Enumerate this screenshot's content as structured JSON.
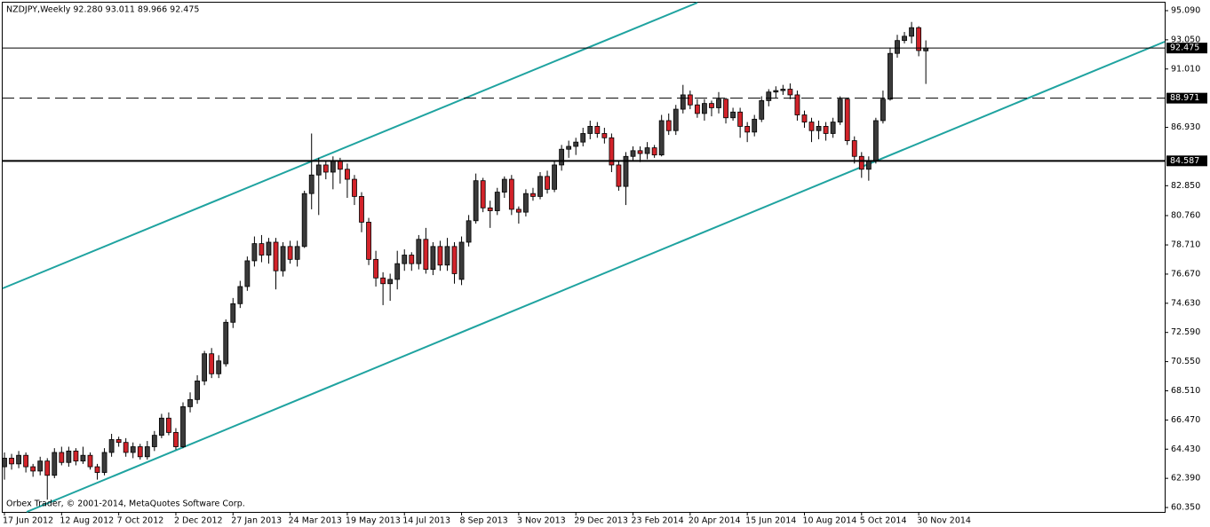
{
  "chart_data": {
    "type": "candlestick",
    "title": "NZDJPY,Weekly  92.280 93.011 89.966 92.475",
    "copyright": "Orbex Trader, © 2001-2014, MetaQuotes Software Corp.",
    "categories": [
      "17 Jun 2012",
      null,
      null,
      null,
      null,
      null,
      null,
      null,
      "12 Aug 2012",
      null,
      null,
      null,
      null,
      null,
      null,
      null,
      "7 Oct 2012",
      null,
      null,
      null,
      null,
      null,
      null,
      null,
      "2 Dec 2012",
      null,
      null,
      null,
      null,
      null,
      null,
      null,
      "27 Jan 2013",
      null,
      null,
      null,
      null,
      null,
      null,
      null,
      "24 Mar 2013",
      null,
      null,
      null,
      null,
      null,
      null,
      null,
      "19 May 2013",
      null,
      null,
      null,
      null,
      null,
      null,
      null,
      "14 Jul 2013",
      null,
      null,
      null,
      null,
      null,
      null,
      null,
      "8 Sep 2013",
      null,
      null,
      null,
      null,
      null,
      null,
      null,
      "3 Nov 2013",
      null,
      null,
      null,
      null,
      null,
      null,
      null,
      "29 Dec 2013",
      null,
      null,
      null,
      null,
      null,
      null,
      null,
      "23 Feb 2014",
      null,
      null,
      null,
      null,
      null,
      null,
      null,
      "20 Apr 2014",
      null,
      null,
      null,
      null,
      null,
      null,
      null,
      "15 Jun 2014",
      null,
      null,
      null,
      null,
      null,
      null,
      null,
      "10 Aug 2014",
      null,
      null,
      null,
      null,
      null,
      null,
      null,
      "5 Oct 2014",
      null,
      null,
      null,
      null,
      null,
      null,
      null,
      "30 Nov 2014",
      null
    ],
    "open": [
      63.2,
      63.8,
      63.4,
      64.0,
      63.2,
      62.9,
      63.6,
      62.6,
      64.2,
      63.5,
      64.3,
      63.6,
      64.0,
      63.2,
      62.8,
      64.2,
      65.1,
      64.9,
      64.2,
      64.6,
      63.9,
      64.6,
      65.4,
      66.6,
      65.6,
      64.6,
      67.4,
      67.9,
      69.2,
      71.1,
      69.7,
      70.4,
      73.3,
      74.6,
      75.8,
      77.6,
      78.8,
      78.0,
      78.9,
      76.9,
      78.6,
      77.7,
      78.6,
      82.3,
      83.6,
      84.3,
      83.8,
      84.6,
      84.0,
      83.3,
      82.1,
      80.3,
      77.7,
      76.4,
      76.0,
      76.3,
      77.4,
      78.0,
      77.4,
      79.1,
      77.0,
      78.6,
      77.3,
      78.6,
      76.3,
      78.9,
      80.4,
      83.2,
      81.3,
      81.1,
      82.4,
      83.3,
      81.2,
      81.0,
      82.3,
      82.1,
      83.5,
      82.6,
      84.3,
      85.4,
      85.6,
      85.9,
      86.5,
      87.0,
      86.5,
      86.2,
      84.3,
      82.8,
      84.9,
      85.3,
      85.1,
      85.5,
      85.0,
      87.4,
      86.7,
      88.2,
      89.2,
      88.5,
      87.9,
      88.6,
      88.3,
      88.9,
      87.6,
      88.0,
      87.0,
      86.6,
      87.5,
      88.8,
      89.4,
      89.5,
      89.6,
      89.2,
      87.8,
      87.3,
      86.7,
      87.0,
      86.5,
      87.3,
      88.9,
      86.0,
      84.9,
      84.0,
      84.6,
      87.4,
      88.9,
      92.1,
      93.0,
      93.3,
      93.9,
      92.28
    ],
    "high": [
      64.2,
      64.1,
      64.3,
      64.2,
      63.4,
      63.9,
      63.8,
      64.5,
      64.6,
      64.6,
      64.5,
      64.6,
      64.2,
      63.4,
      64.5,
      65.5,
      65.3,
      65.2,
      64.9,
      64.8,
      65.0,
      65.7,
      66.9,
      67.0,
      65.9,
      67.7,
      68.4,
      69.6,
      71.3,
      71.5,
      71.0,
      73.5,
      75.0,
      76.2,
      77.9,
      79.3,
      79.4,
      79.2,
      79.2,
      78.9,
      79.0,
      79.0,
      82.5,
      86.5,
      84.8,
      84.6,
      84.9,
      84.8,
      84.4,
      83.6,
      82.4,
      80.6,
      78.3,
      76.8,
      76.7,
      78.3,
      78.4,
      78.2,
      79.4,
      79.9,
      78.9,
      79.0,
      79.2,
      78.9,
      79.3,
      80.8,
      83.7,
      83.4,
      81.8,
      82.7,
      83.5,
      83.6,
      81.4,
      82.6,
      82.7,
      83.8,
      83.9,
      84.6,
      85.7,
      86.0,
      86.2,
      86.9,
      87.4,
      87.3,
      86.9,
      86.5,
      84.6,
      85.2,
      85.6,
      85.6,
      85.9,
      85.7,
      87.8,
      87.9,
      88.5,
      89.9,
      89.5,
      88.9,
      88.9,
      88.8,
      89.4,
      89.0,
      88.3,
      88.3,
      87.3,
      87.8,
      89.1,
      89.6,
      89.8,
      89.9,
      90.0,
      89.5,
      88.1,
      87.6,
      87.4,
      87.3,
      87.6,
      89.1,
      89.0,
      86.3,
      85.2,
      84.9,
      87.6,
      89.5,
      92.5,
      93.4,
      93.6,
      94.3,
      94.0,
      93.011
    ],
    "low": [
      62.3,
      63.0,
      63.1,
      62.8,
      62.5,
      62.6,
      60.9,
      62.4,
      63.3,
      63.2,
      63.3,
      63.4,
      63.0,
      62.3,
      62.6,
      63.9,
      64.6,
      63.9,
      63.8,
      63.7,
      63.7,
      64.3,
      65.2,
      65.4,
      64.4,
      64.5,
      67.0,
      67.6,
      68.9,
      69.4,
      69.4,
      70.2,
      72.9,
      74.3,
      75.5,
      77.2,
      77.5,
      77.4,
      75.6,
      76.5,
      77.4,
      77.2,
      78.5,
      81.2,
      80.8,
      83.3,
      82.6,
      83.0,
      82.0,
      81.5,
      79.6,
      77.3,
      75.8,
      74.5,
      74.8,
      75.6,
      76.9,
      76.9,
      77.0,
      76.7,
      76.6,
      76.9,
      76.9,
      76.0,
      75.9,
      78.6,
      80.2,
      81.0,
      79.9,
      80.8,
      82.0,
      80.8,
      80.2,
      80.7,
      81.8,
      81.9,
      82.3,
      82.4,
      83.9,
      84.8,
      85.0,
      85.6,
      86.1,
      86.2,
      85.8,
      83.8,
      82.5,
      81.5,
      84.6,
      84.5,
      84.7,
      84.8,
      84.9,
      86.4,
      86.4,
      87.9,
      88.2,
      87.6,
      87.4,
      87.7,
      87.9,
      87.2,
      87.4,
      86.2,
      85.9,
      86.3,
      87.3,
      88.4,
      89.0,
      89.2,
      88.9,
      87.4,
      86.9,
      85.9,
      86.1,
      86.0,
      86.2,
      87.1,
      85.7,
      84.4,
      83.4,
      83.2,
      84.4,
      87.2,
      88.8,
      91.8,
      92.8,
      92.8,
      91.9,
      89.966
    ],
    "close": [
      63.8,
      63.4,
      64.0,
      63.2,
      62.9,
      63.6,
      62.6,
      64.2,
      63.5,
      64.3,
      63.6,
      64.0,
      63.2,
      62.8,
      64.2,
      65.1,
      64.9,
      64.2,
      64.6,
      63.9,
      64.6,
      65.4,
      66.6,
      65.6,
      64.6,
      67.4,
      67.9,
      69.2,
      71.1,
      69.7,
      70.6,
      73.3,
      74.6,
      75.8,
      77.6,
      78.8,
      78.0,
      78.9,
      76.9,
      78.6,
      77.7,
      78.6,
      82.3,
      83.6,
      84.3,
      83.8,
      84.6,
      84.0,
      83.3,
      82.1,
      80.3,
      77.7,
      76.4,
      76.0,
      76.3,
      77.4,
      78.0,
      77.4,
      79.1,
      77.0,
      78.6,
      77.3,
      78.6,
      76.7,
      78.9,
      80.4,
      83.2,
      81.3,
      81.1,
      82.4,
      83.3,
      81.2,
      81.0,
      82.3,
      82.1,
      83.5,
      82.6,
      84.3,
      85.4,
      85.6,
      85.9,
      86.5,
      87.0,
      86.5,
      86.2,
      84.3,
      82.8,
      84.9,
      85.3,
      85.1,
      85.5,
      85.0,
      87.4,
      86.7,
      88.2,
      89.2,
      88.5,
      87.9,
      88.6,
      88.3,
      88.9,
      87.6,
      88.0,
      87.0,
      86.6,
      87.5,
      88.8,
      89.4,
      89.5,
      89.6,
      89.2,
      87.8,
      87.3,
      86.7,
      87.0,
      86.5,
      87.3,
      88.9,
      86.0,
      84.9,
      84.0,
      84.6,
      87.4,
      88.9,
      92.1,
      93.0,
      93.3,
      93.9,
      92.3,
      92.475
    ],
    "up_color": "#3a3a3a",
    "down_color": "#d2232a",
    "channel_color": "#1fa3a0",
    "ylim": [
      59.98,
      95.71
    ],
    "yticks": [
      {
        "value": 95.09,
        "label": "95.090"
      },
      {
        "value": 93.05,
        "label": "93.050"
      },
      {
        "value": 91.01,
        "label": "91.010"
      },
      {
        "value": 86.93,
        "label": "86.930"
      },
      {
        "value": 82.85,
        "label": "82.850"
      },
      {
        "value": 80.76,
        "label": "80.760"
      },
      {
        "value": 78.71,
        "label": "78.710"
      },
      {
        "value": 76.67,
        "label": "76.670"
      },
      {
        "value": 74.63,
        "label": "74.630"
      },
      {
        "value": 72.59,
        "label": "72.590"
      },
      {
        "value": 70.55,
        "label": "70.550"
      },
      {
        "value": 68.51,
        "label": "68.510"
      },
      {
        "value": 66.47,
        "label": "66.470"
      },
      {
        "value": 64.43,
        "label": "64.430"
      },
      {
        "value": 62.39,
        "label": "62.390"
      },
      {
        "value": 60.35,
        "label": "60.350"
      }
    ],
    "levels": [
      {
        "value": 92.475,
        "label": "92.475",
        "style": "solid"
      },
      {
        "value": 88.971,
        "label": "88.971",
        "style": "dashed"
      },
      {
        "value": 84.587,
        "label": "84.587",
        "style": "thick"
      }
    ],
    "grid": false
  }
}
